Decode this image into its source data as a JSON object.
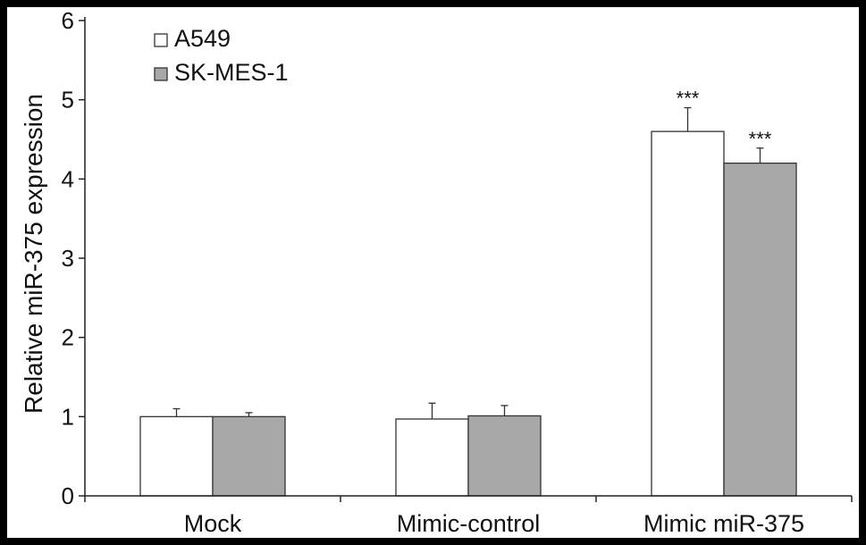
{
  "chart_data": {
    "type": "bar",
    "title": "",
    "xlabel": "",
    "ylabel": "Relative miR-375 expression",
    "ylim": [
      0,
      6
    ],
    "yticks": [
      0,
      1,
      2,
      3,
      4,
      5,
      6
    ],
    "grid": false,
    "legend_position": "top-left",
    "categories": [
      "Mock",
      "Mimic-control",
      "Mimic miR-375"
    ],
    "series": [
      {
        "name": "A549",
        "color": "#ffffff",
        "values": [
          1.0,
          0.97,
          4.6
        ],
        "errors": [
          0.1,
          0.2,
          0.3
        ],
        "significance": [
          "",
          "",
          "***"
        ]
      },
      {
        "name": "SK-MES-1",
        "color": "#a8a8a8",
        "values": [
          1.0,
          1.01,
          4.2
        ],
        "errors": [
          0.05,
          0.13,
          0.19
        ],
        "significance": [
          "",
          "",
          "***"
        ]
      }
    ]
  }
}
